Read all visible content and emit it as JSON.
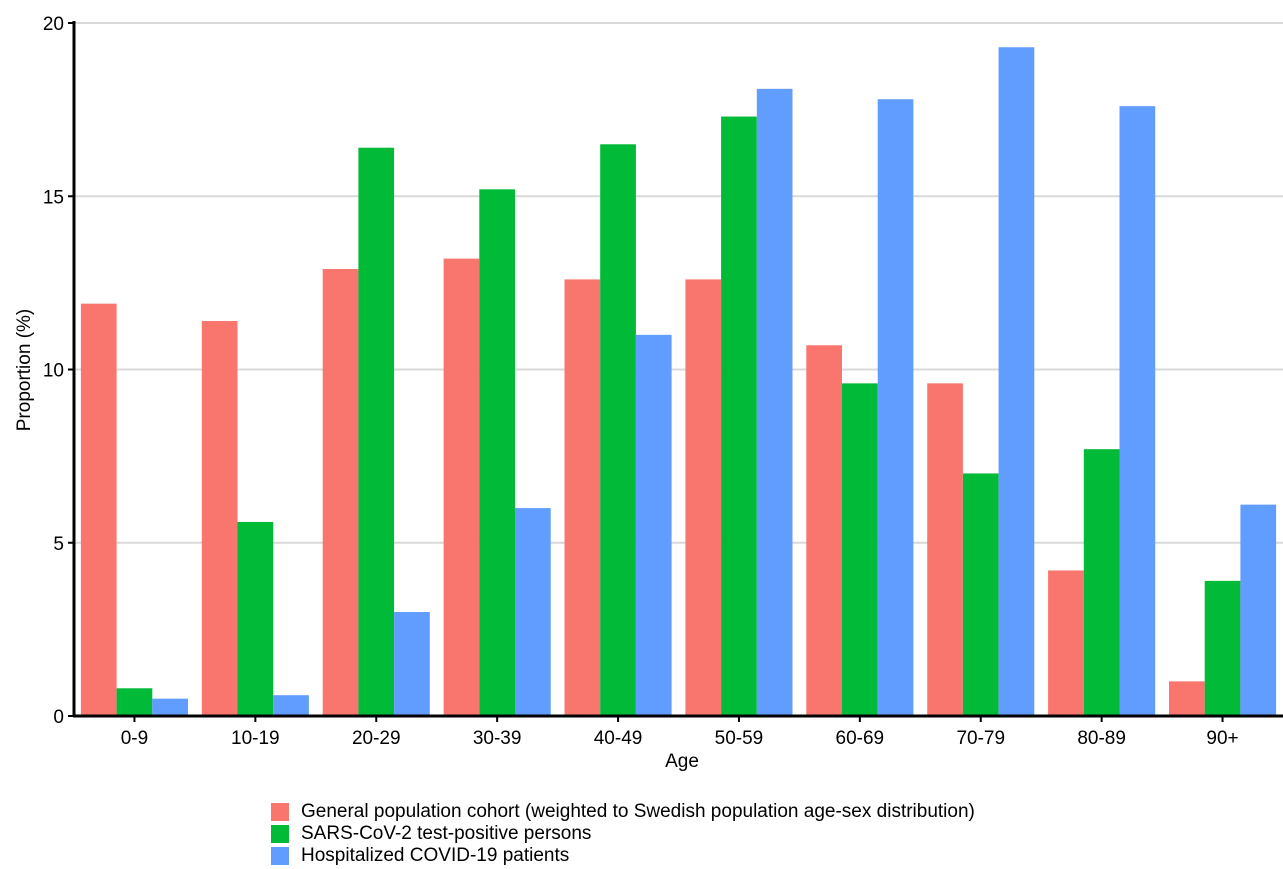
{
  "chart_data": {
    "type": "bar",
    "xlabel": "Age",
    "ylabel": "Proportion (%)",
    "ylim": [
      0,
      20
    ],
    "yticks": [
      0,
      5,
      10,
      15,
      20
    ],
    "grid": "horizontal",
    "legend_position": "bottom",
    "categories": [
      "0-9",
      "10-19",
      "20-29",
      "30-39",
      "40-49",
      "50-59",
      "60-69",
      "70-79",
      "80-89",
      "90+"
    ],
    "series": [
      {
        "name": "General population cohort (weighted to Swedish population age-sex distribution)",
        "color": "#F8766D",
        "values": [
          11.9,
          11.4,
          12.9,
          13.2,
          12.6,
          12.6,
          10.7,
          9.6,
          4.2,
          1.0
        ]
      },
      {
        "name": "SARS-CoV-2 test-positive persons",
        "color": "#00BA38",
        "values": [
          0.8,
          5.6,
          16.4,
          15.2,
          16.5,
          17.3,
          9.6,
          7.0,
          7.7,
          3.9
        ]
      },
      {
        "name": "Hospitalized COVID-19 patients",
        "color": "#619CFF",
        "values": [
          0.5,
          0.6,
          3.0,
          6.0,
          11.0,
          18.1,
          17.8,
          19.3,
          17.6,
          6.1
        ]
      }
    ]
  }
}
